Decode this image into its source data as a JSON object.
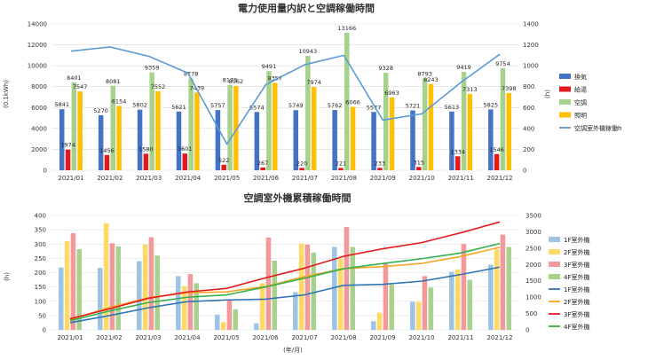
{
  "chart_data": [
    {
      "type": "bar",
      "title": "電力使用量内訳と空調稼働時間",
      "ylabel": "(0.1kWh)",
      "y2label": "(h)",
      "ylim": [
        0,
        14000
      ],
      "y2lim": [
        0,
        1400
      ],
      "y_ticks": [
        "0",
        "2000",
        "4000",
        "6000",
        "8000",
        "10000",
        "12000",
        "14000"
      ],
      "y2_ticks": [
        "0",
        "200",
        "400",
        "600",
        "800",
        "1000",
        "1200",
        "1400"
      ],
      "categories": [
        "2021/01",
        "2021/02",
        "2021/03",
        "2021/04",
        "2021/05",
        "2021/06",
        "2021/07",
        "2021/08",
        "2021/09",
        "2021/10",
        "2021/11",
        "2021/12"
      ],
      "series": [
        {
          "name": "換気",
          "kind": "bar",
          "color": "#4472c4",
          "values": [
            5841,
            5270,
            5802,
            5621,
            5757,
            5574,
            5749,
            5762,
            5577,
            5721,
            5613,
            5825
          ]
        },
        {
          "name": "給湯",
          "kind": "bar",
          "color": "#e31a1c",
          "values": [
            1974,
            1456,
            1580,
            1601,
            522,
            267,
            220,
            221,
            233,
            315,
            1334,
            1546
          ]
        },
        {
          "name": "空調",
          "kind": "bar",
          "color": "#a9d18e",
          "values": [
            8401,
            8081,
            9359,
            8778,
            8173,
            9491,
            10943,
            13166,
            9328,
            8793,
            9419,
            9754
          ]
        },
        {
          "name": "照明",
          "kind": "bar",
          "color": "#ffc000",
          "values": [
            7547,
            6154,
            7552,
            7439,
            8062,
            8357,
            7974,
            6066,
            6963,
            8243,
            7313,
            7398
          ]
        },
        {
          "name": "空調室外機稼働h",
          "kind": "line",
          "axis": "right",
          "color": "#5b9bd5",
          "values": [
            1140,
            1180,
            1090,
            930,
            250,
            820,
            1010,
            1100,
            480,
            540,
            840,
            1110
          ]
        }
      ],
      "legend_position": "right"
    },
    {
      "type": "bar",
      "title": "空調室外機累積稼働時間",
      "ylabel": "(h)",
      "xlabel": "(年/月)",
      "ylim": [
        0,
        400
      ],
      "y2lim": [
        0,
        3500
      ],
      "y_ticks": [
        "0",
        "50",
        "100",
        "150",
        "200",
        "250",
        "300",
        "350",
        "400"
      ],
      "y2_ticks": [
        "0",
        "500",
        "1000",
        "1500",
        "2000",
        "2500",
        "3000",
        "3500"
      ],
      "categories": [
        "2021/01",
        "2021/02",
        "2021/03",
        "2021/04",
        "2021/05",
        "2021/06",
        "2021/07",
        "2021/08",
        "2021/09",
        "2021/10",
        "2021/11",
        "2021/12"
      ],
      "series": [
        {
          "name": "1F室外機",
          "kind": "bar",
          "color": "#9dc3e6",
          "values": [
            218,
            217,
            240,
            188,
            53,
            23,
            132,
            290,
            30,
            98,
            203,
            228
          ]
        },
        {
          "name": "2F室外機",
          "kind": "bar",
          "color": "#ffd966",
          "values": [
            310,
            373,
            298,
            153,
            27,
            163,
            302,
            248,
            60,
            98,
            212,
            282
          ]
        },
        {
          "name": "3F室外機",
          "kind": "bar",
          "color": "#f4999a",
          "values": [
            338,
            303,
            324,
            195,
            107,
            323,
            298,
            360,
            233,
            188,
            300,
            333
          ]
        },
        {
          "name": "4F室外機",
          "kind": "bar",
          "color": "#a9d18e",
          "values": [
            282,
            292,
            260,
            163,
            72,
            242,
            270,
            290,
            158,
            148,
            175,
            290
          ]
        },
        {
          "name": "1F室外機",
          "kind": "line",
          "axis": "right",
          "color": "#2e75b6",
          "values": [
            218,
            435,
            675,
            863,
            916,
            939,
            1071,
            1361,
            1391,
            1489,
            1692,
            1920
          ]
        },
        {
          "name": "2F室外機",
          "kind": "line",
          "axis": "right",
          "color": "#f5a623",
          "values": [
            310,
            683,
            981,
            1134,
            1161,
            1324,
            1626,
            1874,
            1934,
            2032,
            2244,
            2526
          ]
        },
        {
          "name": "3F室外機",
          "kind": "line",
          "axis": "right",
          "color": "#e31a1c",
          "values": [
            338,
            641,
            965,
            1160,
            1267,
            1590,
            1888,
            2248,
            2481,
            2669,
            2969,
            3302
          ]
        },
        {
          "name": "4F室外機",
          "kind": "line",
          "axis": "right",
          "color": "#33b04a",
          "values": [
            282,
            574,
            834,
            997,
            1069,
            1311,
            1581,
            1871,
            2029,
            2177,
            2352,
            2642
          ]
        }
      ],
      "legend_position": "right"
    }
  ]
}
